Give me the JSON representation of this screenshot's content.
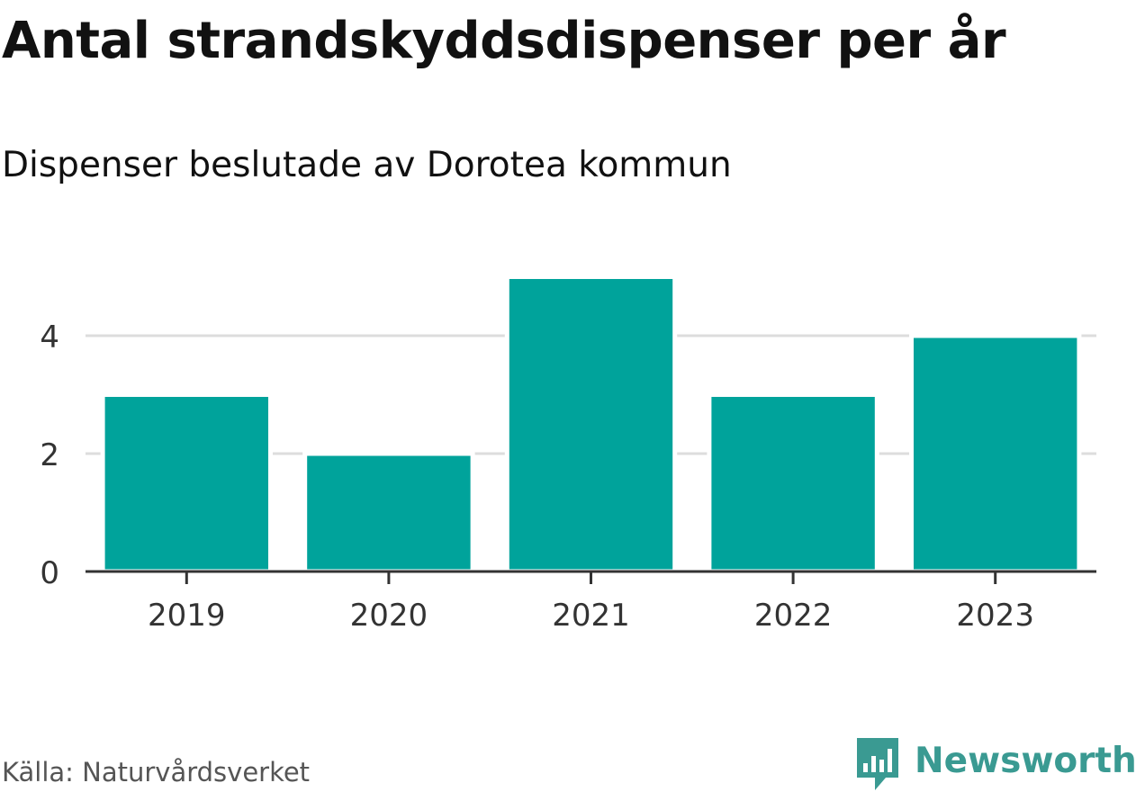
{
  "chart_data": {
    "type": "bar",
    "title": "Antal strandskyddsdispenser per år",
    "subtitle": "Dispenser beslutade av Dorotea kommun",
    "categories": [
      "2019",
      "2020",
      "2021",
      "2022",
      "2023"
    ],
    "values": [
      3,
      2,
      5,
      3,
      4
    ],
    "xlabel": "",
    "ylabel": "",
    "ylim": [
      0,
      5
    ],
    "yticks": [
      0,
      2,
      4
    ],
    "grid": true,
    "bar_color": "#00a39b"
  },
  "footer": {
    "source": "Källa: Naturvårdsverket",
    "brand": "Newsworthy",
    "brand_icon": "newsworthy-logo-icon",
    "brand_color": "#3a9a92"
  }
}
